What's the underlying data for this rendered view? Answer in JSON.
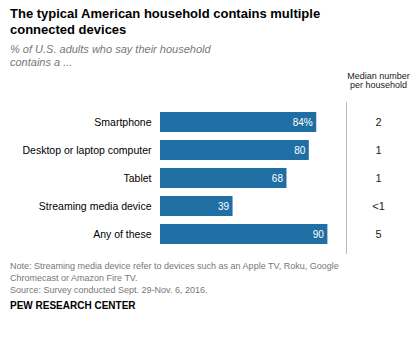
{
  "chart_data": {
    "type": "bar",
    "orientation": "horizontal",
    "title": "The typical American household contains multiple\nconnected devices",
    "subtitle": "% of U.S. adults who say their household\ncontains a ...",
    "categories": [
      "Smartphone",
      "Desktop or laptop computer",
      "Tablet",
      "Streaming media device",
      "Any of these"
    ],
    "values": [
      84,
      80,
      68,
      39,
      90
    ],
    "value_labels": [
      "84%",
      "80",
      "68",
      "39",
      "90"
    ],
    "data_labels": true,
    "color": "#1f6fa5",
    "xlim": [
      0,
      100
    ],
    "tick_labels": "y",
    "grid": false,
    "median_header": "Median number\nper household",
    "median_values": [
      "2",
      "1",
      "1",
      "<1",
      "5"
    ],
    "notes": [
      "Note: Streaming media device refer to devices such as an Apple TV, Roku, Google",
      "Chromecast or Amazon Fire TV.",
      "Source: Survey conducted Sept. 29-Nov. 6, 2016."
    ],
    "source": "PEW RESEARCH CENTER"
  }
}
